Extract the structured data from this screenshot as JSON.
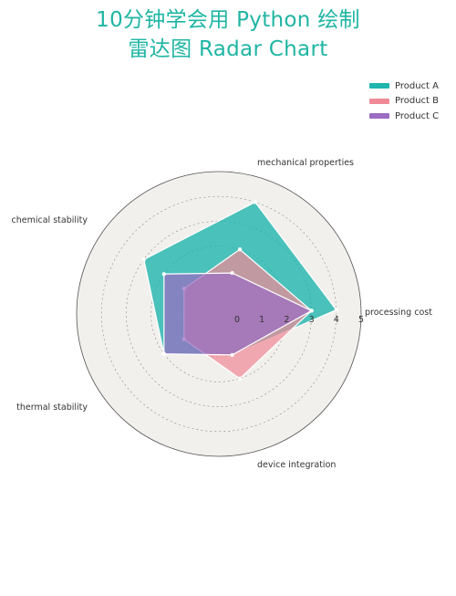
{
  "title": {
    "line1": "10分钟学会用 Python 绘制",
    "line2": "雷达图 Radar Chart"
  },
  "chart_data": {
    "type": "radar",
    "axes": [
      "processing cost",
      "mechanical properties",
      "chemical stability",
      "thermal stability",
      "device integration"
    ],
    "radial_ticks": [
      "0",
      "1",
      "2",
      "3",
      "4",
      "5"
    ],
    "r_range": [
      0,
      5
    ],
    "series": [
      {
        "name": "Product A",
        "values": [
          4,
          4,
          3,
          2,
          1
        ],
        "color": "#1fb5ad"
      },
      {
        "name": "Product B",
        "values": [
          3,
          2,
          1,
          1,
          2
        ],
        "color": "#f08a97"
      },
      {
        "name": "Product C",
        "values": [
          3,
          1,
          2,
          2,
          1
        ],
        "color": "#9b6cc2"
      }
    ],
    "legend_position": "top-right"
  }
}
